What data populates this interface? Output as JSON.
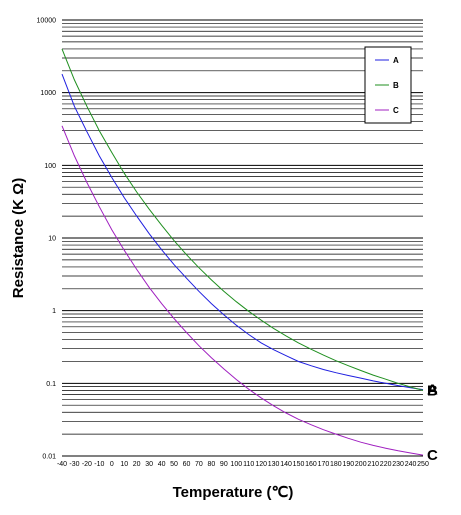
{
  "chart_data": {
    "type": "line",
    "xlabel": "Temperature (℃)",
    "ylabel": "Resistance (K Ω)",
    "xlim": [
      -40,
      250
    ],
    "ylim": [
      0.01,
      10000
    ],
    "y_scale": "log",
    "x_ticks": [
      "-40",
      "-30",
      "-20",
      "-10",
      "0",
      "10",
      "20",
      "30",
      "40",
      "50",
      "60",
      "70",
      "80",
      "90",
      "100",
      "110",
      "120",
      "130",
      "140",
      "150",
      "160",
      "170",
      "180",
      "190",
      "200",
      "210",
      "220",
      "230",
      "240",
      "250"
    ],
    "y_ticks": [
      "10000",
      "1000",
      "100",
      "10",
      "1",
      "0.1",
      "0.01"
    ],
    "y_tick_values": [
      10000,
      1000,
      100,
      10,
      1,
      0.1,
      0.01
    ],
    "grid": "horizontal",
    "legend_position": "top-right",
    "series": [
      {
        "name": "A",
        "color": "#1f1fe0",
        "x": [
          -40,
          -30,
          -20,
          -10,
          0,
          10,
          20,
          30,
          40,
          50,
          60,
          70,
          80,
          90,
          100,
          110,
          120,
          130,
          140,
          150,
          160,
          170,
          180,
          190,
          200,
          210,
          220,
          230,
          240,
          250
        ],
        "y": [
          1800,
          650,
          290,
          135,
          68,
          36,
          20,
          11.5,
          6.9,
          4.3,
          2.8,
          1.85,
          1.25,
          0.88,
          0.63,
          0.47,
          0.36,
          0.29,
          0.24,
          0.2,
          0.175,
          0.155,
          0.14,
          0.128,
          0.118,
          0.108,
          0.1,
          0.093,
          0.087,
          0.082
        ]
      },
      {
        "name": "B",
        "color": "#1f8f1f",
        "x": [
          -40,
          -30,
          -20,
          -10,
          0,
          10,
          20,
          30,
          40,
          50,
          60,
          70,
          80,
          90,
          100,
          110,
          120,
          130,
          140,
          150,
          160,
          170,
          180,
          190,
          200,
          210,
          220,
          230,
          240,
          250
        ],
        "y": [
          4000,
          1500,
          650,
          300,
          150,
          78,
          43,
          25,
          15,
          9.2,
          5.9,
          3.9,
          2.65,
          1.85,
          1.33,
          0.98,
          0.74,
          0.57,
          0.45,
          0.36,
          0.295,
          0.245,
          0.205,
          0.175,
          0.15,
          0.13,
          0.114,
          0.1,
          0.089,
          0.08
        ]
      },
      {
        "name": "C",
        "color": "#a020c0",
        "x": [
          -40,
          -30,
          -20,
          -10,
          0,
          10,
          20,
          30,
          40,
          50,
          60,
          70,
          80,
          90,
          100,
          110,
          120,
          130,
          140,
          150,
          160,
          170,
          180,
          190,
          200,
          210,
          220,
          230,
          240,
          250
        ],
        "y": [
          350,
          135,
          58,
          27,
          13,
          6.8,
          3.7,
          2.1,
          1.25,
          0.78,
          0.5,
          0.33,
          0.225,
          0.158,
          0.113,
          0.083,
          0.063,
          0.049,
          0.039,
          0.032,
          0.027,
          0.023,
          0.02,
          0.0175,
          0.0155,
          0.014,
          0.0128,
          0.0118,
          0.011,
          0.0103
        ]
      }
    ],
    "end_labels": [
      {
        "text": "B",
        "series": "B"
      },
      {
        "text": "A",
        "series": "A"
      },
      {
        "text": "C",
        "series": "C"
      }
    ]
  }
}
